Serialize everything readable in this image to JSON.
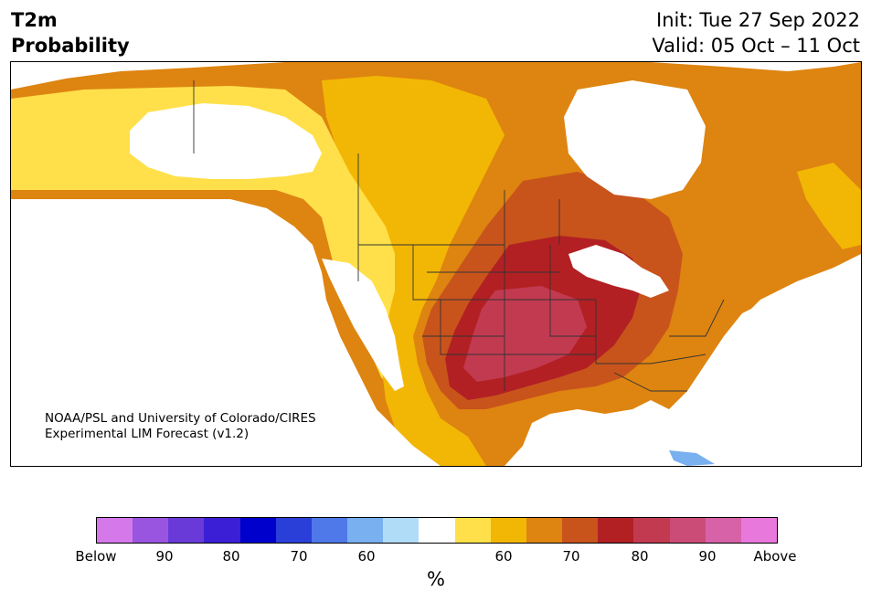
{
  "header": {
    "title_line1": "T2m",
    "title_line2": "Probability",
    "init": "Init: Tue 27 Sep 2022",
    "valid": "Valid: 05 Oct – 11 Oct"
  },
  "credit": {
    "line1": "NOAA/PSL and University of Colorado/CIRES",
    "line2": "Experimental LIM Forecast (v1.2)"
  },
  "colorbar": {
    "colors": [
      "#d478ea",
      "#9a55e0",
      "#6a3ad8",
      "#3a1fd6",
      "#0000cc",
      "#2a3fd8",
      "#4f78e8",
      "#78b0f0",
      "#b0dcf8",
      "#ffffff",
      "#ffe04a",
      "#f2b705",
      "#de8410",
      "#c8541c",
      "#b22024",
      "#c23a50",
      "#cc4c78",
      "#d862a8",
      "#e878dc"
    ],
    "labels": [
      "Below",
      "90",
      "80",
      "70",
      "60",
      "60",
      "70",
      "80",
      "90",
      "Above"
    ],
    "units": "%"
  },
  "map": {
    "colors": {
      "white": "#ffffff",
      "prob_50_60": "#ffe04a",
      "prob_60_70": "#f2b705",
      "prob_70_75": "#de8410",
      "prob_75_80": "#c8541c",
      "prob_80_85": "#b22024",
      "prob_85_90": "#c23a50",
      "below_light": "#78b0f0",
      "border": "#333333"
    }
  }
}
